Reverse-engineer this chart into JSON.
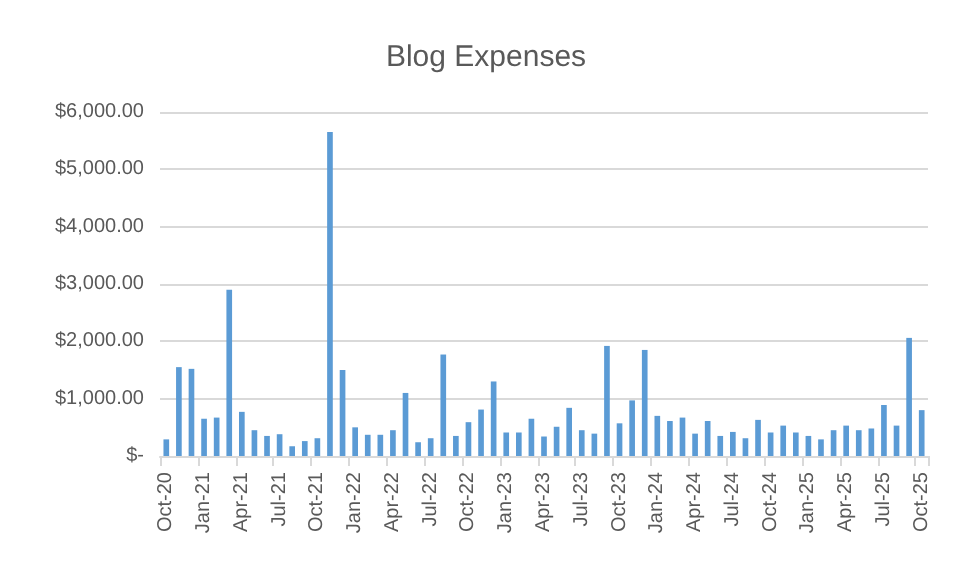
{
  "chart_data": {
    "type": "bar",
    "title": "Blog Expenses",
    "categories": [
      "Oct-20",
      null,
      null,
      "Jan-21",
      null,
      null,
      "Apr-21",
      null,
      null,
      "Jul-21",
      null,
      null,
      "Oct-21",
      null,
      null,
      "Jan-22",
      null,
      null,
      "Apr-22",
      null,
      null,
      "Jul-22",
      null,
      null,
      "Oct-22",
      null,
      null,
      "Jan-23",
      null,
      null,
      "Apr-23",
      null,
      null,
      "Jul-23",
      null,
      null,
      "Oct-23",
      null,
      null,
      "Jan-24",
      null,
      null,
      "Apr-24",
      null,
      null,
      "Jul-24",
      null,
      null,
      "Oct-24",
      null,
      null,
      "Jan-25",
      null,
      null,
      "Apr-25",
      null,
      null,
      "Jul-25",
      null,
      null,
      "Oct-25"
    ],
    "values": [
      290,
      1550,
      1520,
      650,
      670,
      2900,
      770,
      450,
      350,
      380,
      170,
      260,
      310,
      5650,
      1500,
      500,
      370,
      370,
      450,
      1100,
      240,
      310,
      1770,
      350,
      590,
      810,
      1300,
      410,
      410,
      650,
      340,
      510,
      840,
      450,
      390,
      1920,
      570,
      970,
      1850,
      700,
      610,
      670,
      390,
      610,
      350,
      420,
      310,
      630,
      410,
      530,
      410,
      350,
      290,
      450,
      530,
      450,
      480,
      890,
      530,
      2060,
      800
    ],
    "color": "#5b9bd5",
    "ylim": [
      0,
      6000
    ],
    "yticks": [
      {
        "value": 0,
        "label": "$-"
      },
      {
        "value": 1000,
        "label": "$1,000.00"
      },
      {
        "value": 2000,
        "label": "$2,000.00"
      },
      {
        "value": 3000,
        "label": "$3,000.00"
      },
      {
        "value": 4000,
        "label": "$4,000.00"
      },
      {
        "value": 5000,
        "label": "$5,000.00"
      },
      {
        "value": 6000,
        "label": "$6,000.00"
      }
    ],
    "grid": "y"
  }
}
